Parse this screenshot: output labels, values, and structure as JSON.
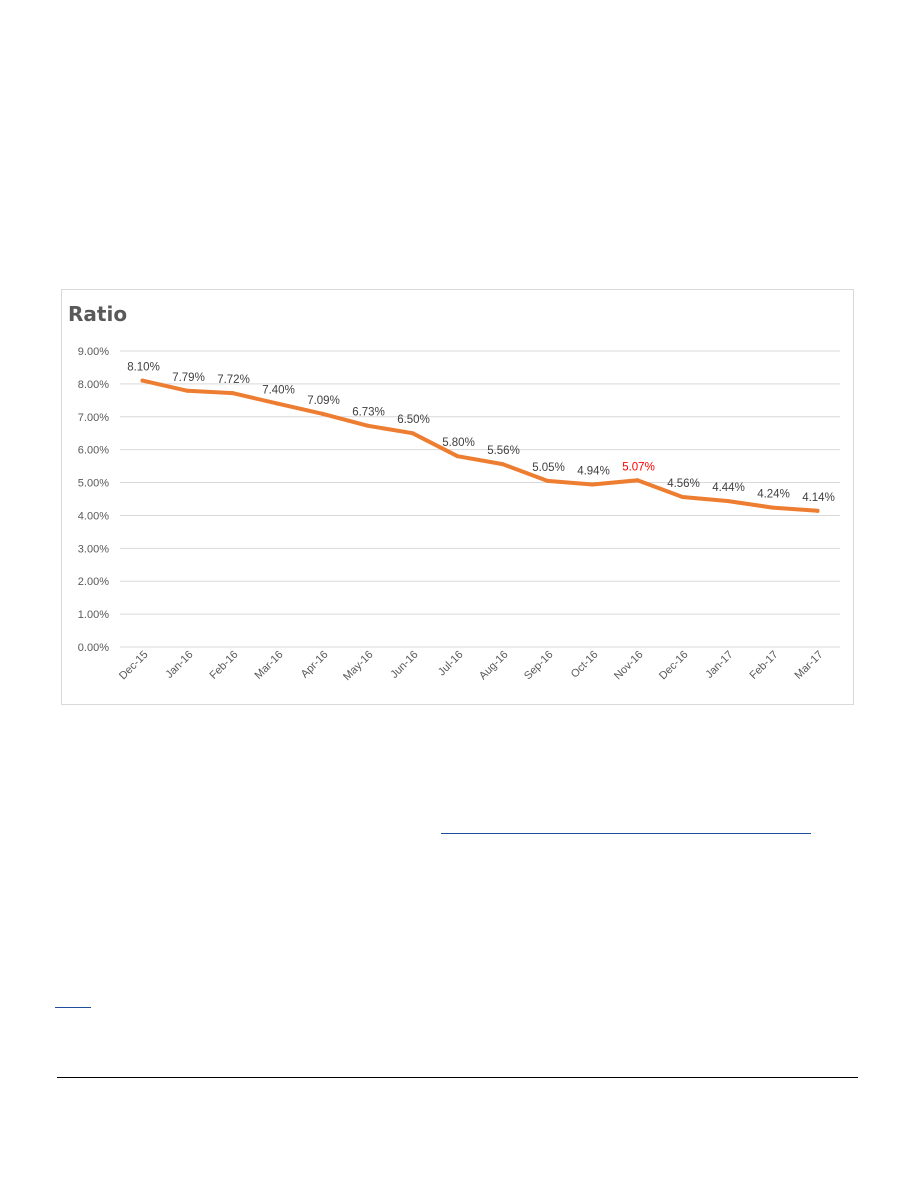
{
  "chart_data": {
    "type": "line",
    "title": "Ratio",
    "categories": [
      "Dec-15",
      "Jan-16",
      "Feb-16",
      "Mar-16",
      "Apr-16",
      "May-16",
      "Jun-16",
      "Jul-16",
      "Aug-16",
      "Sep-16",
      "Oct-16",
      "Nov-16",
      "Dec-16",
      "Jan-17",
      "Feb-17",
      "Mar-17"
    ],
    "series": [
      {
        "values": [
          8.1,
          7.79,
          7.72,
          7.4,
          7.09,
          6.73,
          6.5,
          5.8,
          5.56,
          5.05,
          4.94,
          5.07,
          4.56,
          4.44,
          4.24,
          4.14
        ],
        "data_labels": [
          "8.10%",
          "7.79%",
          "7.72%",
          "7.40%",
          "7.09%",
          "6.73%",
          "6.50%",
          "5.80%",
          "5.56%",
          "5.05%",
          "4.94%",
          "5.07%",
          "4.56%",
          "4.44%",
          "4.24%",
          "4.14%"
        ],
        "color": "#ed7d31"
      }
    ],
    "highlight_label_index": 11,
    "highlight_color": "#ff0000",
    "ylim": [
      0,
      9
    ],
    "y_ticks": [
      "0.00%",
      "1.00%",
      "2.00%",
      "3.00%",
      "4.00%",
      "5.00%",
      "6.00%",
      "7.00%",
      "8.00%",
      "9.00%"
    ],
    "grid": true,
    "legend": "none",
    "xlabel": "",
    "ylabel": ""
  }
}
